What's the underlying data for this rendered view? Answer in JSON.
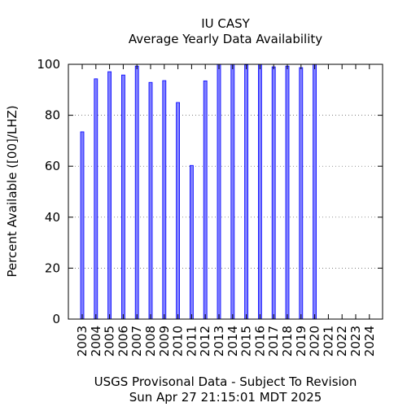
{
  "chart_data": {
    "type": "bar",
    "title": "IU CASY",
    "subtitle": "Average Yearly Data Availability",
    "ylabel": "Percent Available ([00]/LHZ)",
    "footer_line1": "USGS Provisonal Data - Subject To Revision",
    "footer_line2": "Sun Apr 27 21:15:01 MDT 2025",
    "categories": [
      "2003",
      "2004",
      "2005",
      "2006",
      "2007",
      "2008",
      "2009",
      "2010",
      "2011",
      "2012",
      "2013",
      "2014",
      "2015",
      "2016",
      "2017",
      "2018",
      "2019",
      "2020",
      "2021",
      "2022",
      "2023",
      "2024"
    ],
    "values": [
      73.5,
      94.3,
      97.1,
      95.8,
      99.3,
      92.9,
      93.6,
      85.0,
      60.3,
      93.5,
      100,
      100,
      99.8,
      100,
      99.0,
      99.3,
      98.7,
      100,
      null,
      null,
      null,
      null
    ],
    "ylim": [
      0,
      100
    ],
    "yticks": [
      0,
      20,
      40,
      60,
      80,
      100
    ],
    "grid": true,
    "bar_fill": "#8080ff",
    "bar_stroke": "#0000ff"
  }
}
